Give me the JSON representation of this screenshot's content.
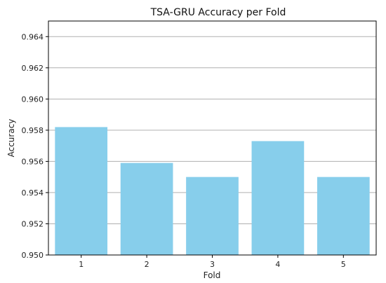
{
  "chart_data": {
    "type": "bar",
    "title": "TSA-GRU Accuracy per Fold",
    "xlabel": "Fold",
    "ylabel": "Accuracy",
    "categories": [
      "1",
      "2",
      "3",
      "4",
      "5"
    ],
    "values": [
      0.9582,
      0.9559,
      0.955,
      0.9573,
      0.955
    ],
    "ylim": [
      0.95,
      0.965
    ],
    "yticks": [
      "0.950",
      "0.952",
      "0.954",
      "0.956",
      "0.958",
      "0.960",
      "0.962",
      "0.964"
    ],
    "grid": "horizontal",
    "bar_color": "#87CEEB",
    "grid_color": "#b0b0b0"
  }
}
